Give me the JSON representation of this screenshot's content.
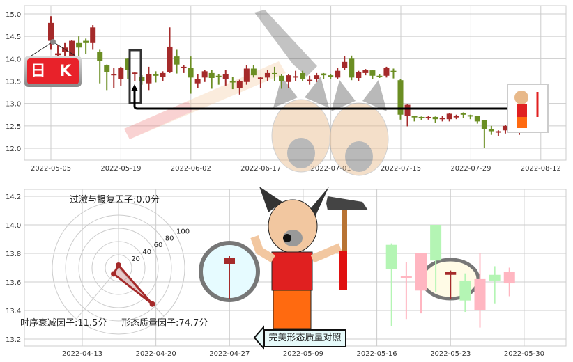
{
  "colors": {
    "up": "#a52a2a",
    "down": "#6b8e23",
    "up_pale": "#ffb6c1",
    "down_pale": "#b4f5b4",
    "match": "#a52a2a",
    "grid": "#cccccc"
  },
  "badge": {
    "label": "日 K"
  },
  "compare_label": "完美形态质量对照",
  "radar": {
    "factors": [
      {
        "label": "过激与报复因子:0.0分",
        "value": 0.0
      },
      {
        "label": "时序衰减因子:11.5分",
        "value": 11.5
      },
      {
        "label": "形态质量因子:74.7分",
        "value": 74.7
      }
    ],
    "ring_labels": [
      "20",
      "40",
      "60",
      "80",
      "100"
    ]
  },
  "chart_data": [
    {
      "type": "candlestick",
      "title": "",
      "ylim": [
        11.75,
        15.2
      ],
      "y_ticks": [
        "12.0",
        "12.5",
        "13.0",
        "13.5",
        "14.0",
        "14.5",
        "15.0"
      ],
      "x_ticks": [
        "2022-05-05",
        "2022-05-19",
        "2022-06-02",
        "2022-06-17",
        "2022-07-01",
        "2022-07-15",
        "2022-07-29",
        "2022-08-12"
      ],
      "grid": true,
      "dates": [
        "2022-05-05",
        "2022-05-06",
        "2022-05-09",
        "2022-05-10",
        "2022-05-11",
        "2022-05-12",
        "2022-05-13",
        "2022-05-16",
        "2022-05-17",
        "2022-05-18",
        "2022-05-19",
        "2022-05-20",
        "2022-05-23",
        "2022-05-24",
        "2022-05-25",
        "2022-05-26",
        "2022-05-27",
        "2022-05-30",
        "2022-05-31",
        "2022-06-01",
        "2022-06-02",
        "2022-06-06",
        "2022-06-07",
        "2022-06-08",
        "2022-06-09",
        "2022-06-10",
        "2022-06-13",
        "2022-06-14",
        "2022-06-15",
        "2022-06-16",
        "2022-06-17",
        "2022-06-20",
        "2022-06-21",
        "2022-06-22",
        "2022-06-23",
        "2022-06-24",
        "2022-06-27",
        "2022-06-28",
        "2022-06-29",
        "2022-06-30",
        "2022-07-01",
        "2022-07-04",
        "2022-07-05",
        "2022-07-06",
        "2022-07-07",
        "2022-07-08",
        "2022-07-11",
        "2022-07-12",
        "2022-07-13",
        "2022-07-14",
        "2022-07-15",
        "2022-07-18",
        "2022-07-19",
        "2022-07-20",
        "2022-07-21",
        "2022-07-22",
        "2022-07-25",
        "2022-07-26",
        "2022-07-27",
        "2022-07-28",
        "2022-07-29",
        "2022-08-01",
        "2022-08-02",
        "2022-08-03",
        "2022-08-04",
        "2022-08-05",
        "2022-08-08",
        "2022-08-09",
        "2022-08-10"
      ],
      "ohlc": [
        [
          14.4,
          14.95,
          14.2,
          14.8
        ],
        [
          14.08,
          14.3,
          14.0,
          14.12
        ],
        [
          14.15,
          14.35,
          14.0,
          14.25
        ],
        [
          14.0,
          14.42,
          14.0,
          14.4
        ],
        [
          14.35,
          14.5,
          14.0,
          14.25
        ],
        [
          14.4,
          14.45,
          14.1,
          14.35
        ],
        [
          14.35,
          14.75,
          14.2,
          14.7
        ],
        [
          14.15,
          14.2,
          13.45,
          13.95
        ],
        [
          13.85,
          13.87,
          13.3,
          13.7
        ],
        [
          13.64,
          13.8,
          13.35,
          13.66
        ],
        [
          13.55,
          13.82,
          13.4,
          13.8
        ],
        [
          14.0,
          14.02,
          13.55,
          13.75
        ],
        [
          13.67,
          13.7,
          13.5,
          13.69
        ],
        [
          13.6,
          13.63,
          13.42,
          13.5
        ],
        [
          13.45,
          13.82,
          13.3,
          13.65
        ],
        [
          13.65,
          13.72,
          13.47,
          13.62
        ],
        [
          13.6,
          13.72,
          13.5,
          13.68
        ],
        [
          13.7,
          14.7,
          13.68,
          14.27
        ],
        [
          14.05,
          14.2,
          13.67,
          13.87
        ],
        [
          13.8,
          13.85,
          13.68,
          13.82
        ],
        [
          13.8,
          14.05,
          13.22,
          13.58
        ],
        [
          13.45,
          13.65,
          13.35,
          13.55
        ],
        [
          13.58,
          13.75,
          13.48,
          13.72
        ],
        [
          13.68,
          13.75,
          13.33,
          13.57
        ],
        [
          13.62,
          13.65,
          13.42,
          13.6
        ],
        [
          13.55,
          13.75,
          13.4,
          13.65
        ],
        [
          13.5,
          13.6,
          13.32,
          13.47
        ],
        [
          13.35,
          13.53,
          13.2,
          13.5
        ],
        [
          13.48,
          13.85,
          13.42,
          13.78
        ],
        [
          13.78,
          13.85,
          13.58,
          13.63
        ],
        [
          13.55,
          13.6,
          13.35,
          13.58
        ],
        [
          13.58,
          13.75,
          13.5,
          13.68
        ],
        [
          13.68,
          13.82,
          13.5,
          13.66
        ],
        [
          13.62,
          13.65,
          13.33,
          13.5
        ],
        [
          13.48,
          13.65,
          13.35,
          13.63
        ],
        [
          13.59,
          13.73,
          13.5,
          13.61
        ],
        [
          13.68,
          13.73,
          13.5,
          13.55
        ],
        [
          13.51,
          13.62,
          13.42,
          13.53
        ],
        [
          13.55,
          13.68,
          13.48,
          13.63
        ],
        [
          13.67,
          13.68,
          13.55,
          13.63
        ],
        [
          13.63,
          13.66,
          13.55,
          13.61
        ],
        [
          13.58,
          13.8,
          13.55,
          13.73
        ],
        [
          13.8,
          14.06,
          13.75,
          13.93
        ],
        [
          14.0,
          14.07,
          13.52,
          13.58
        ],
        [
          13.57,
          13.73,
          13.5,
          13.7
        ],
        [
          13.68,
          13.77,
          13.63,
          13.75
        ],
        [
          13.74,
          13.75,
          13.55,
          13.62
        ],
        [
          13.62,
          13.65,
          13.57,
          13.6
        ],
        [
          13.62,
          13.82,
          13.58,
          13.8
        ],
        [
          13.73,
          13.78,
          13.56,
          13.7
        ],
        [
          13.52,
          13.55,
          12.64,
          12.75
        ],
        [
          12.72,
          12.98,
          12.49,
          12.97
        ],
        [
          12.72,
          12.73,
          12.6,
          12.7
        ],
        [
          12.7,
          12.71,
          12.63,
          12.69
        ],
        [
          12.67,
          12.72,
          12.64,
          12.7
        ],
        [
          12.7,
          12.71,
          12.57,
          12.65
        ],
        [
          12.67,
          12.72,
          12.6,
          12.68
        ],
        [
          12.65,
          12.78,
          12.6,
          12.77
        ],
        [
          12.7,
          12.75,
          12.65,
          12.72
        ],
        [
          12.78,
          12.8,
          12.68,
          12.77
        ],
        [
          12.74,
          12.75,
          12.65,
          12.72
        ],
        [
          12.72,
          12.73,
          12.55,
          12.6
        ],
        [
          12.63,
          12.63,
          12.0,
          12.43
        ],
        [
          12.42,
          12.5,
          12.3,
          12.38
        ],
        [
          12.37,
          12.4,
          12.28,
          12.38
        ],
        [
          12.4,
          12.52,
          12.33,
          12.5
        ],
        [
          12.45,
          12.52,
          12.38,
          12.5
        ],
        [
          12.38,
          12.42,
          12.3,
          12.4
        ],
        [
          12.42,
          12.45,
          12.35,
          12.4
        ]
      ]
    },
    {
      "type": "candlestick",
      "title": "",
      "ylim": [
        13.15,
        14.25
      ],
      "y_ticks": [
        "13.2",
        "13.4",
        "13.6",
        "13.8",
        "14.0",
        "14.2"
      ],
      "x_ticks": [
        "2022-04-13",
        "2022-04-20",
        "2022-04-27",
        "2022-05-09",
        "2022-05-16",
        "2022-05-23",
        "2022-05-30"
      ],
      "grid": true,
      "dates": [
        "2022-05-17",
        "2022-05-18",
        "2022-05-19",
        "2022-05-20",
        "2022-05-23",
        "2022-05-24",
        "2022-05-25",
        "2022-05-26",
        "2022-05-27"
      ],
      "ohlc": [
        [
          13.86,
          13.87,
          13.29,
          13.69
        ],
        [
          13.64,
          13.74,
          13.34,
          13.64
        ],
        [
          13.54,
          13.8,
          13.38,
          13.8
        ],
        [
          14.0,
          14.0,
          13.53,
          13.75
        ],
        [
          13.65,
          13.68,
          13.48,
          13.67
        ],
        [
          13.61,
          13.66,
          13.39,
          13.47
        ],
        [
          13.4,
          13.8,
          13.28,
          13.62
        ],
        [
          13.65,
          13.71,
          13.45,
          13.61
        ],
        [
          13.59,
          13.7,
          13.5,
          13.67
        ]
      ],
      "highlighted": "2022-05-23",
      "magnified_candle": {
        "date": "2022-04-27",
        "ohlc": [
          13.75,
          13.78,
          13.48,
          13.78
        ]
      }
    }
  ]
}
